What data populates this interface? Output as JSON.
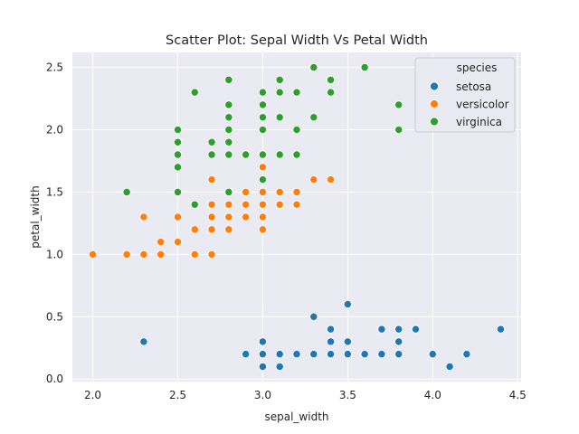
{
  "chart_data": {
    "type": "scatter",
    "title": "Scatter Plot: Sepal Width Vs Petal Width",
    "xlabel": "sepal_width",
    "ylabel": "petal_width",
    "xlim": [
      1.88,
      4.52
    ],
    "ylim": [
      -0.02,
      2.62
    ],
    "xticks": [
      "2.0",
      "2.5",
      "3.0",
      "3.5",
      "4.0",
      "4.5"
    ],
    "yticks": [
      "0.0",
      "0.5",
      "1.0",
      "1.5",
      "2.0",
      "2.5"
    ],
    "grid": true,
    "legend": {
      "title": "species",
      "placement": "top-right"
    },
    "series": [
      {
        "name": "setosa",
        "color": "#1f77b4",
        "x": [
          2.3,
          2.9,
          3.0,
          3.0,
          3.0,
          3.1,
          3.1,
          3.2,
          3.3,
          3.3,
          3.4,
          3.4,
          3.4,
          3.5,
          3.5,
          3.5,
          3.6,
          3.7,
          3.7,
          3.8,
          3.8,
          3.8,
          3.9,
          4.0,
          4.1,
          4.2,
          4.4
        ],
        "y": [
          0.3,
          0.2,
          0.1,
          0.2,
          0.3,
          0.1,
          0.2,
          0.2,
          0.2,
          0.5,
          0.2,
          0.3,
          0.4,
          0.2,
          0.3,
          0.6,
          0.2,
          0.2,
          0.4,
          0.2,
          0.3,
          0.4,
          0.4,
          0.2,
          0.1,
          0.2,
          0.4
        ]
      },
      {
        "name": "versicolor",
        "color": "#ff7f0e",
        "x": [
          2.0,
          2.2,
          2.2,
          2.3,
          2.3,
          2.4,
          2.4,
          2.5,
          2.5,
          2.5,
          2.6,
          2.6,
          2.7,
          2.7,
          2.7,
          2.7,
          2.7,
          2.8,
          2.8,
          2.8,
          2.8,
          2.9,
          2.9,
          2.9,
          2.9,
          3.0,
          3.0,
          3.0,
          3.0,
          3.0,
          3.0,
          3.1,
          3.1,
          3.2,
          3.2,
          3.3,
          3.4
        ],
        "y": [
          1.0,
          1.0,
          1.5,
          1.0,
          1.3,
          1.0,
          1.1,
          1.1,
          1.3,
          1.5,
          1.0,
          1.2,
          1.0,
          1.2,
          1.3,
          1.4,
          1.6,
          1.2,
          1.3,
          1.4,
          1.5,
          1.3,
          1.4,
          1.5,
          1.3,
          1.2,
          1.3,
          1.4,
          1.5,
          1.6,
          1.7,
          1.4,
          1.5,
          1.4,
          1.5,
          1.6,
          1.6
        ]
      },
      {
        "name": "virginica",
        "color": "#2ca02c",
        "x": [
          2.2,
          2.5,
          2.5,
          2.5,
          2.5,
          2.5,
          2.6,
          2.6,
          2.7,
          2.7,
          2.7,
          2.8,
          2.8,
          2.8,
          2.8,
          2.8,
          2.8,
          2.8,
          2.9,
          3.0,
          3.0,
          3.0,
          3.0,
          3.0,
          3.0,
          3.0,
          3.0,
          3.1,
          3.1,
          3.1,
          3.1,
          3.2,
          3.2,
          3.2,
          3.2,
          3.3,
          3.3,
          3.4,
          3.4,
          3.6,
          3.8,
          3.8
        ],
        "y": [
          1.5,
          1.7,
          1.8,
          1.9,
          2.0,
          1.5,
          1.4,
          2.3,
          1.8,
          1.9,
          1.9,
          1.5,
          1.8,
          1.9,
          2.0,
          2.1,
          2.2,
          2.4,
          1.8,
          1.6,
          1.8,
          1.8,
          2.0,
          2.1,
          2.2,
          2.3,
          1.8,
          1.8,
          2.1,
          2.3,
          2.4,
          1.8,
          2.0,
          2.3,
          2.3,
          2.1,
          2.5,
          2.3,
          2.4,
          2.5,
          2.0,
          2.2
        ]
      }
    ]
  }
}
